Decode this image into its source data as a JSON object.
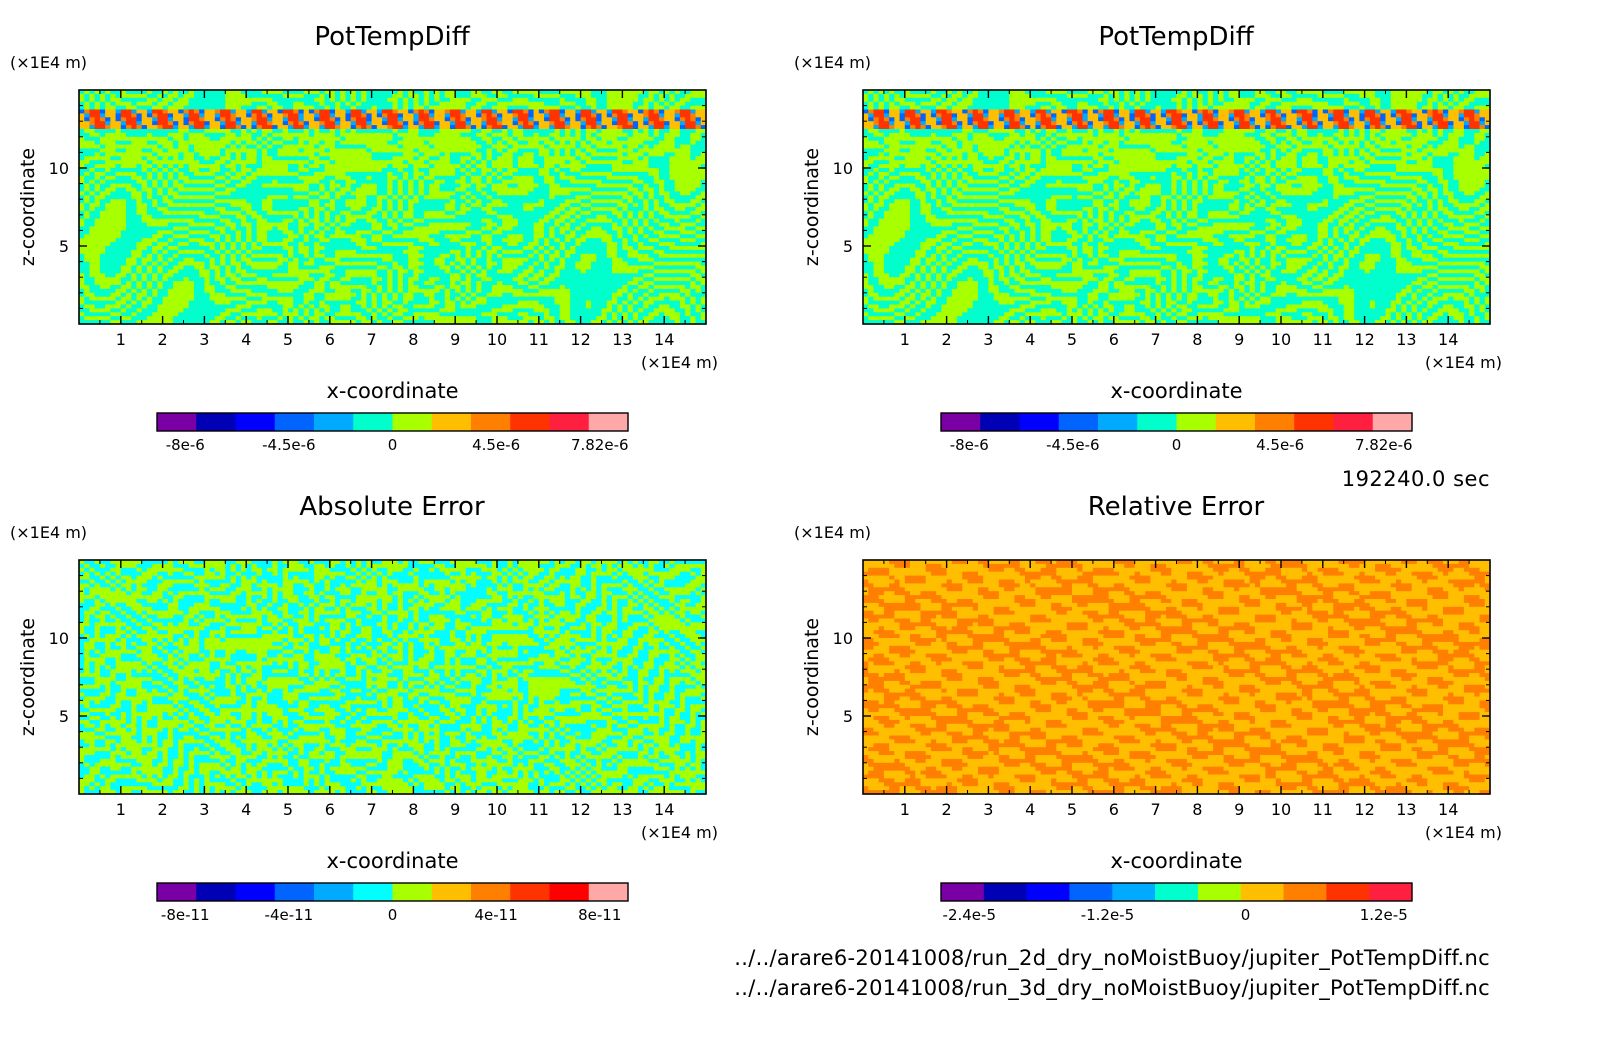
{
  "timestamp": "192240.0 sec",
  "files": [
    "../../arare6-20141008/run_2d_dry_noMoistBuoy/jupiter_PotTempDiff.nc",
    "../../arare6-20141008/run_3d_dry_noMoistBuoy/jupiter_PotTempDiff.nc"
  ],
  "chart_data": [
    {
      "type": "heatmap",
      "title": "PotTempDiff",
      "xlabel": "x-coordinate",
      "ylabel": "z-coordinate",
      "x_unit": "(×1E4 m)",
      "y_unit": "(×1E4 m)",
      "xlim": [
        0,
        15
      ],
      "ylim": [
        0,
        15
      ],
      "x_ticks": [
        "1",
        "2",
        "3",
        "4",
        "5",
        "6",
        "7",
        "8",
        "9",
        "10",
        "11",
        "12",
        "13",
        "14"
      ],
      "y_ticks": [
        "5",
        "10"
      ],
      "pattern": "pot",
      "colorbar": {
        "colors": [
          "#7a00a6",
          "#0000b4",
          "#0000ff",
          "#0064ff",
          "#00aaff",
          "#00ffcc",
          "#a8ff00",
          "#ffbf00",
          "#ff7f00",
          "#ff3300",
          "#ff2040",
          "#ffa8a8"
        ],
        "labels": [
          "-8e-6",
          "-4.5e-6",
          "0",
          "4.5e-6",
          "7.82e-6"
        ]
      }
    },
    {
      "type": "heatmap",
      "title": "PotTempDiff",
      "xlabel": "x-coordinate",
      "ylabel": "z-coordinate",
      "x_unit": "(×1E4 m)",
      "y_unit": "(×1E4 m)",
      "xlim": [
        0,
        15
      ],
      "ylim": [
        0,
        15
      ],
      "x_ticks": [
        "1",
        "2",
        "3",
        "4",
        "5",
        "6",
        "7",
        "8",
        "9",
        "10",
        "11",
        "12",
        "13",
        "14"
      ],
      "y_ticks": [
        "5",
        "10"
      ],
      "pattern": "pot",
      "colorbar": {
        "colors": [
          "#7a00a6",
          "#0000b4",
          "#0000ff",
          "#0064ff",
          "#00aaff",
          "#00ffcc",
          "#a8ff00",
          "#ffbf00",
          "#ff7f00",
          "#ff3300",
          "#ff2040",
          "#ffa8a8"
        ],
        "labels": [
          "-8e-6",
          "-4.5e-6",
          "0",
          "4.5e-6",
          "7.82e-6"
        ]
      }
    },
    {
      "type": "heatmap",
      "title": "Absolute Error",
      "xlabel": "x-coordinate",
      "ylabel": "z-coordinate",
      "x_unit": "(×1E4 m)",
      "y_unit": "(×1E4 m)",
      "xlim": [
        0,
        15
      ],
      "ylim": [
        0,
        15
      ],
      "x_ticks": [
        "1",
        "2",
        "3",
        "4",
        "5",
        "6",
        "7",
        "8",
        "9",
        "10",
        "11",
        "12",
        "13",
        "14"
      ],
      "y_ticks": [
        "5",
        "10"
      ],
      "pattern": "abs",
      "colorbar": {
        "colors": [
          "#7a00a6",
          "#0000b4",
          "#0000ff",
          "#0064ff",
          "#00aaff",
          "#00ffff",
          "#a8ff00",
          "#ffbf00",
          "#ff7f00",
          "#ff3300",
          "#ff0000",
          "#ffa8a8"
        ],
        "labels": [
          "-8e-11",
          "-4e-11",
          "0",
          "4e-11",
          "8e-11"
        ]
      }
    },
    {
      "type": "heatmap",
      "title": "Relative Error",
      "xlabel": "x-coordinate",
      "ylabel": "z-coordinate",
      "x_unit": "(×1E4 m)",
      "y_unit": "(×1E4 m)",
      "xlim": [
        0,
        15
      ],
      "ylim": [
        0,
        15
      ],
      "x_ticks": [
        "1",
        "2",
        "3",
        "4",
        "5",
        "6",
        "7",
        "8",
        "9",
        "10",
        "11",
        "12",
        "13",
        "14"
      ],
      "y_ticks": [
        "5",
        "10"
      ],
      "pattern": "rel",
      "colorbar": {
        "colors": [
          "#7a00a6",
          "#0000b4",
          "#0000ff",
          "#0064ff",
          "#00aaff",
          "#00ffcc",
          "#a8ff00",
          "#ffbf00",
          "#ff7f00",
          "#ff3300",
          "#ff2040"
        ],
        "labels": [
          "-2.4e-5",
          "-1.2e-5",
          "0",
          "1.2e-5"
        ]
      }
    }
  ]
}
